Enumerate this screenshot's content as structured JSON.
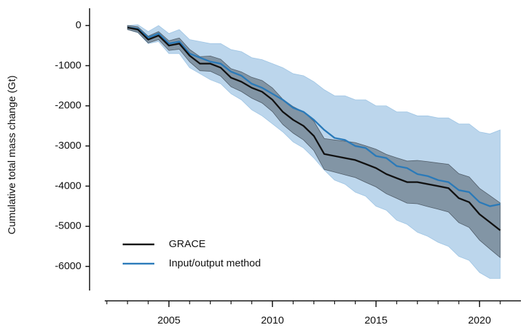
{
  "chart_data": {
    "type": "line",
    "ylabel": "Cumulative total mass change (Gt)",
    "x": [
      2003,
      2003.5,
      2004,
      2004.5,
      2005,
      2005.5,
      2006,
      2006.5,
      2007,
      2007.5,
      2008,
      2008.5,
      2009,
      2009.5,
      2010,
      2010.5,
      2011,
      2011.5,
      2012,
      2012.5,
      2013,
      2013.5,
      2014,
      2014.5,
      2015,
      2015.5,
      2016,
      2016.5,
      2017,
      2017.5,
      2018,
      2018.5,
      2019,
      2019.5,
      2020,
      2020.5,
      2021
    ],
    "series": [
      {
        "name": "GRACE",
        "color": "#111111",
        "band_color": "#3c4650",
        "values": [
          -50,
          -100,
          -350,
          -250,
          -500,
          -450,
          -750,
          -950,
          -950,
          -1050,
          -1300,
          -1400,
          -1550,
          -1650,
          -1850,
          -2150,
          -2350,
          -2500,
          -2750,
          -3200,
          -3250,
          -3300,
          -3350,
          -3450,
          -3550,
          -3700,
          -3800,
          -3900,
          -3900,
          -3950,
          -4000,
          -4050,
          -4300,
          -4400,
          -4700,
          -4900,
          -5100
        ],
        "errors": [
          50,
          70,
          85,
          100,
          120,
          140,
          155,
          175,
          190,
          210,
          225,
          245,
          260,
          280,
          295,
          315,
          330,
          350,
          365,
          385,
          400,
          420,
          435,
          455,
          470,
          490,
          505,
          525,
          540,
          560,
          575,
          595,
          610,
          630,
          645,
          665,
          680
        ]
      },
      {
        "name": "Input/output method",
        "color": "#2a7ab9",
        "band_color": "#8fbbe0",
        "values": [
          -50,
          -80,
          -300,
          -200,
          -450,
          -400,
          -700,
          -800,
          -900,
          -950,
          -1150,
          -1250,
          -1450,
          -1550,
          -1700,
          -1850,
          -2050,
          -2150,
          -2350,
          -2600,
          -2800,
          -2850,
          -3000,
          -3050,
          -3250,
          -3300,
          -3500,
          -3550,
          -3700,
          -3750,
          -3850,
          -3900,
          -4100,
          -4150,
          -4400,
          -4500,
          -4450
        ],
        "errors": [
          50,
          100,
          150,
          200,
          250,
          300,
          350,
          400,
          450,
          500,
          550,
          600,
          650,
          700,
          750,
          800,
          850,
          900,
          950,
          1000,
          1050,
          1100,
          1150,
          1200,
          1250,
          1300,
          1350,
          1400,
          1450,
          1500,
          1550,
          1600,
          1650,
          1700,
          1750,
          1800,
          1850
        ]
      }
    ],
    "xlim": [
      2001.9,
      2022
    ],
    "xticks": [
      2005,
      2010,
      2015,
      2020
    ],
    "xminor": [
      2002,
      2003,
      2004,
      2005,
      2006,
      2007,
      2008,
      2009,
      2010,
      2011,
      2012,
      2013,
      2014,
      2015,
      2016,
      2017,
      2018,
      2019,
      2020,
      2021
    ],
    "ylim": [
      -6600,
      430
    ],
    "yticks": [
      -6000,
      -5000,
      -4000,
      -3000,
      -2000,
      -1000,
      0
    ],
    "legend": "lower-left"
  }
}
